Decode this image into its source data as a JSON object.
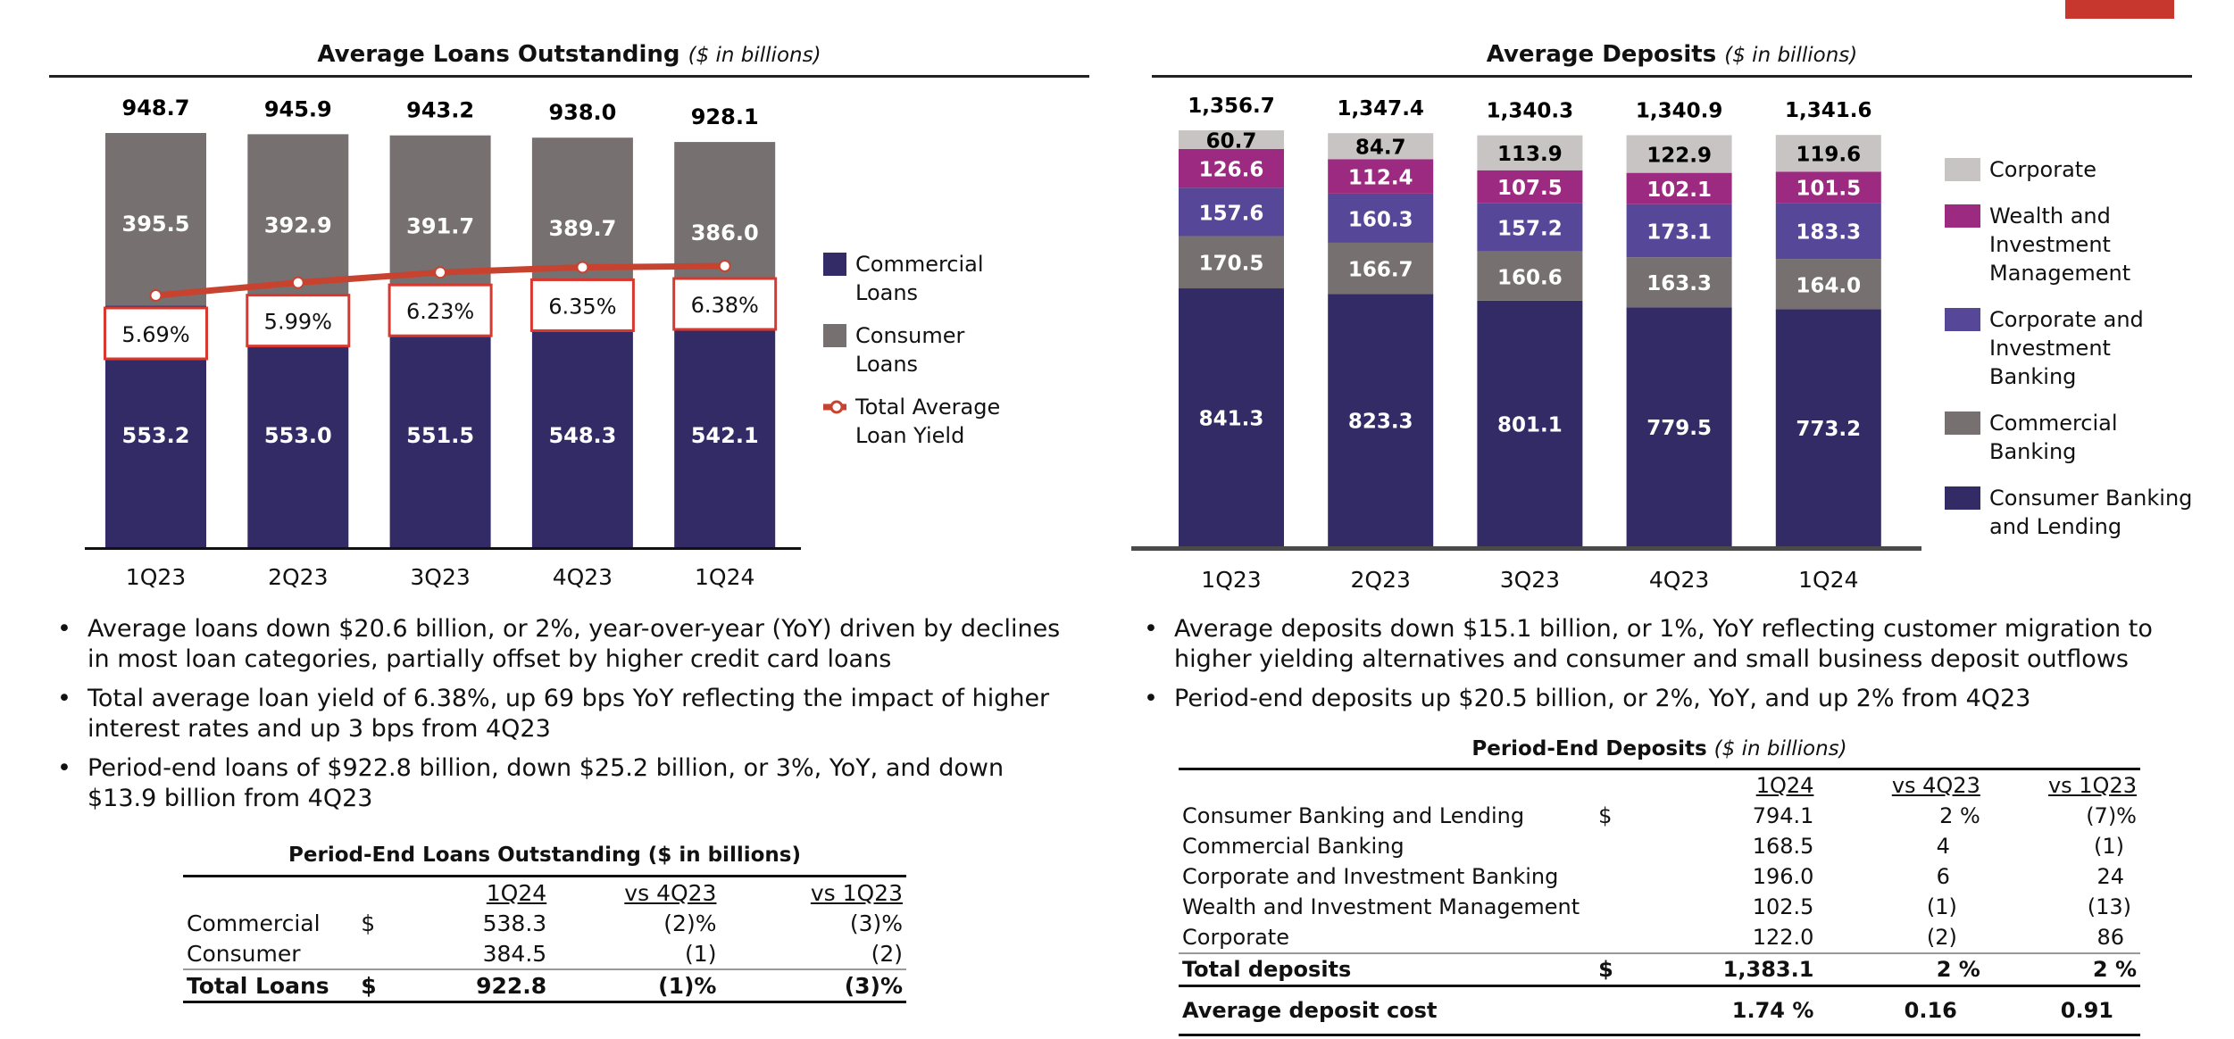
{
  "brand": {
    "accent_color": "#c8372d"
  },
  "loans_panel": {
    "title": "Average Loans Outstanding",
    "subtitle": "($ in billions)",
    "bullets": [
      "Average loans down $20.6 billion, or 2%, year-over-year (YoY) driven by declines in most loan categories, partially offset by higher credit card loans",
      "Total average loan yield of 6.38%, up 69 bps YoY reflecting the impact of higher interest rates and up 3 bps from 4Q23",
      "Period-end loans of $922.8 billion, down $25.2 billion, or 3%, YoY, and down $13.9 billion from 4Q23"
    ],
    "table": {
      "title": "Period-End Loans Outstanding ($ in billions)",
      "headers": [
        "1Q24",
        "vs 4Q23",
        "vs 1Q23"
      ],
      "rows": [
        {
          "label": "Commercial",
          "currency": "$",
          "value": "538.3",
          "vs_4q23": "(2)%",
          "vs_1q23": "(3)%"
        },
        {
          "label": "Consumer",
          "currency": "",
          "value": "384.5",
          "vs_4q23": "(1)",
          "vs_1q23": "(2)"
        }
      ],
      "total": {
        "label": "Total Loans",
        "currency": "$",
        "value": "922.8",
        "vs_4q23": "(1)%",
        "vs_1q23": "(3)%"
      }
    }
  },
  "deposits_panel": {
    "title": "Average Deposits",
    "subtitle": "($ in billions)",
    "bullets": [
      "Average deposits down $15.1 billion, or 1%, YoY reflecting customer migration to higher yielding alternatives and consumer and small business deposit outflows",
      "Period-end deposits up $20.5 billion, or 2%, YoY, and up 2% from 4Q23"
    ],
    "table": {
      "title": "Period-End Deposits",
      "subtitle": "($ in billions)",
      "headers": [
        "1Q24",
        "vs 4Q23",
        "vs 1Q23"
      ],
      "rows": [
        {
          "label": "Consumer Banking and Lending",
          "currency": "$",
          "value": "794.1",
          "vs_4q23": "2 %",
          "vs_1q23": "(7)%"
        },
        {
          "label": "Commercial Banking",
          "currency": "",
          "value": "168.5",
          "vs_4q23": "4",
          "vs_1q23": "(1)"
        },
        {
          "label": "Corporate and Investment Banking",
          "currency": "",
          "value": "196.0",
          "vs_4q23": "6",
          "vs_1q23": "24"
        },
        {
          "label": "Wealth and Investment Management",
          "currency": "",
          "value": "102.5",
          "vs_4q23": "(1)",
          "vs_1q23": "(13)"
        },
        {
          "label": "Corporate",
          "currency": "",
          "value": "122.0",
          "vs_4q23": "(2)",
          "vs_1q23": "86"
        }
      ],
      "total": {
        "label": "Total deposits",
        "currency": "$",
        "value": "1,383.1",
        "vs_4q23": "2 %",
        "vs_1q23": "2 %"
      },
      "cost": {
        "label": "Average deposit cost",
        "value": "1.74 %",
        "vs_4q23": "0.16",
        "vs_1q23": "0.91"
      }
    }
  },
  "chart_data": [
    {
      "type": "bar",
      "stacked": true,
      "title": "Average Loans Outstanding ($ in billions)",
      "categories": [
        "1Q23",
        "2Q23",
        "3Q23",
        "4Q23",
        "1Q24"
      ],
      "series": [
        {
          "name": "Commercial Loans",
          "color": "#332b66",
          "values": [
            553.2,
            553.0,
            551.5,
            548.3,
            542.1
          ],
          "labels": [
            "553.2",
            "553.0",
            "551.5",
            "548.3",
            "542.1"
          ]
        },
        {
          "name": "Consumer Loans",
          "color": "#767070",
          "values": [
            395.5,
            392.9,
            391.7,
            389.7,
            386.0
          ],
          "labels": [
            "395.5",
            "392.9",
            "391.7",
            "389.7",
            "386.0"
          ]
        }
      ],
      "totals": [
        "948.7",
        "945.9",
        "943.2",
        "938.0",
        "928.1"
      ],
      "line_series": {
        "name": "Total Average Loan Yield",
        "color": "#c8432f",
        "values": [
          5.69,
          5.99,
          6.23,
          6.35,
          6.38
        ],
        "labels": [
          "5.69%",
          "5.99%",
          "6.23%",
          "6.35%",
          "6.38%"
        ]
      },
      "legend": [
        {
          "label": "Commercial\nLoans",
          "kind": "swatch",
          "color": "#332b66"
        },
        {
          "label": "Consumer\nLoans",
          "kind": "swatch",
          "color": "#767070"
        },
        {
          "label": "Total Average\n Loan Yield",
          "kind": "line",
          "color": "#c8432f"
        }
      ],
      "legend_position": "right",
      "xlabel": "",
      "ylabel": "",
      "ylim": [
        0,
        1000
      ],
      "grid": false
    },
    {
      "type": "bar",
      "stacked": true,
      "title": "Average Deposits ($ in billions)",
      "categories": [
        "1Q23",
        "2Q23",
        "3Q23",
        "4Q23",
        "1Q24"
      ],
      "series": [
        {
          "name": "Consumer Banking and Lending",
          "color": "#332b66",
          "text_color": "#ffffff",
          "values": [
            841.3,
            823.3,
            801.1,
            779.5,
            773.2
          ],
          "labels": [
            "841.3",
            "823.3",
            "801.1",
            "779.5",
            "773.2"
          ]
        },
        {
          "name": "Commercial Banking",
          "color": "#767070",
          "text_color": "#ffffff",
          "values": [
            170.5,
            166.7,
            160.6,
            163.3,
            164.0
          ],
          "labels": [
            "170.5",
            "166.7",
            "160.6",
            "163.3",
            "164.0"
          ]
        },
        {
          "name": "Corporate and Investment Banking",
          "color": "#574798",
          "text_color": "#ffffff",
          "values": [
            157.6,
            160.3,
            157.2,
            173.1,
            183.3
          ],
          "labels": [
            "157.6",
            "160.3",
            "157.2",
            "173.1",
            "183.3"
          ]
        },
        {
          "name": "Wealth and Investment Management",
          "color": "#9c2a80",
          "text_color": "#ffffff",
          "values": [
            126.6,
            112.4,
            107.5,
            102.1,
            101.5
          ],
          "labels": [
            "126.6",
            "112.4",
            "107.5",
            "102.1",
            "101.5"
          ]
        },
        {
          "name": "Corporate",
          "color": "#c8c4c4",
          "text_color": "#000000",
          "values": [
            60.7,
            84.7,
            113.9,
            122.9,
            119.6
          ],
          "labels": [
            "60.7",
            "84.7",
            "113.9",
            "122.9",
            "119.6"
          ]
        }
      ],
      "totals": [
        "1,356.7",
        "1,347.4",
        "1,340.3",
        "1,340.9",
        "1,341.6"
      ],
      "legend": [
        {
          "label": "Corporate",
          "color": "#c8c4c4"
        },
        {
          "label": "Wealth and\n Investment\nManagement",
          "color": "#9c2a80"
        },
        {
          "label": "Corporate and\nInvestment\nBanking",
          "color": "#574798"
        },
        {
          "label": "Commercial\nBanking",
          "color": "#767070"
        },
        {
          "label": "Consumer Banking\nand Lending",
          "color": "#332b66"
        }
      ],
      "legend_position": "right",
      "xlabel": "",
      "ylabel": "",
      "ylim": [
        0,
        1400
      ],
      "grid": false
    }
  ]
}
